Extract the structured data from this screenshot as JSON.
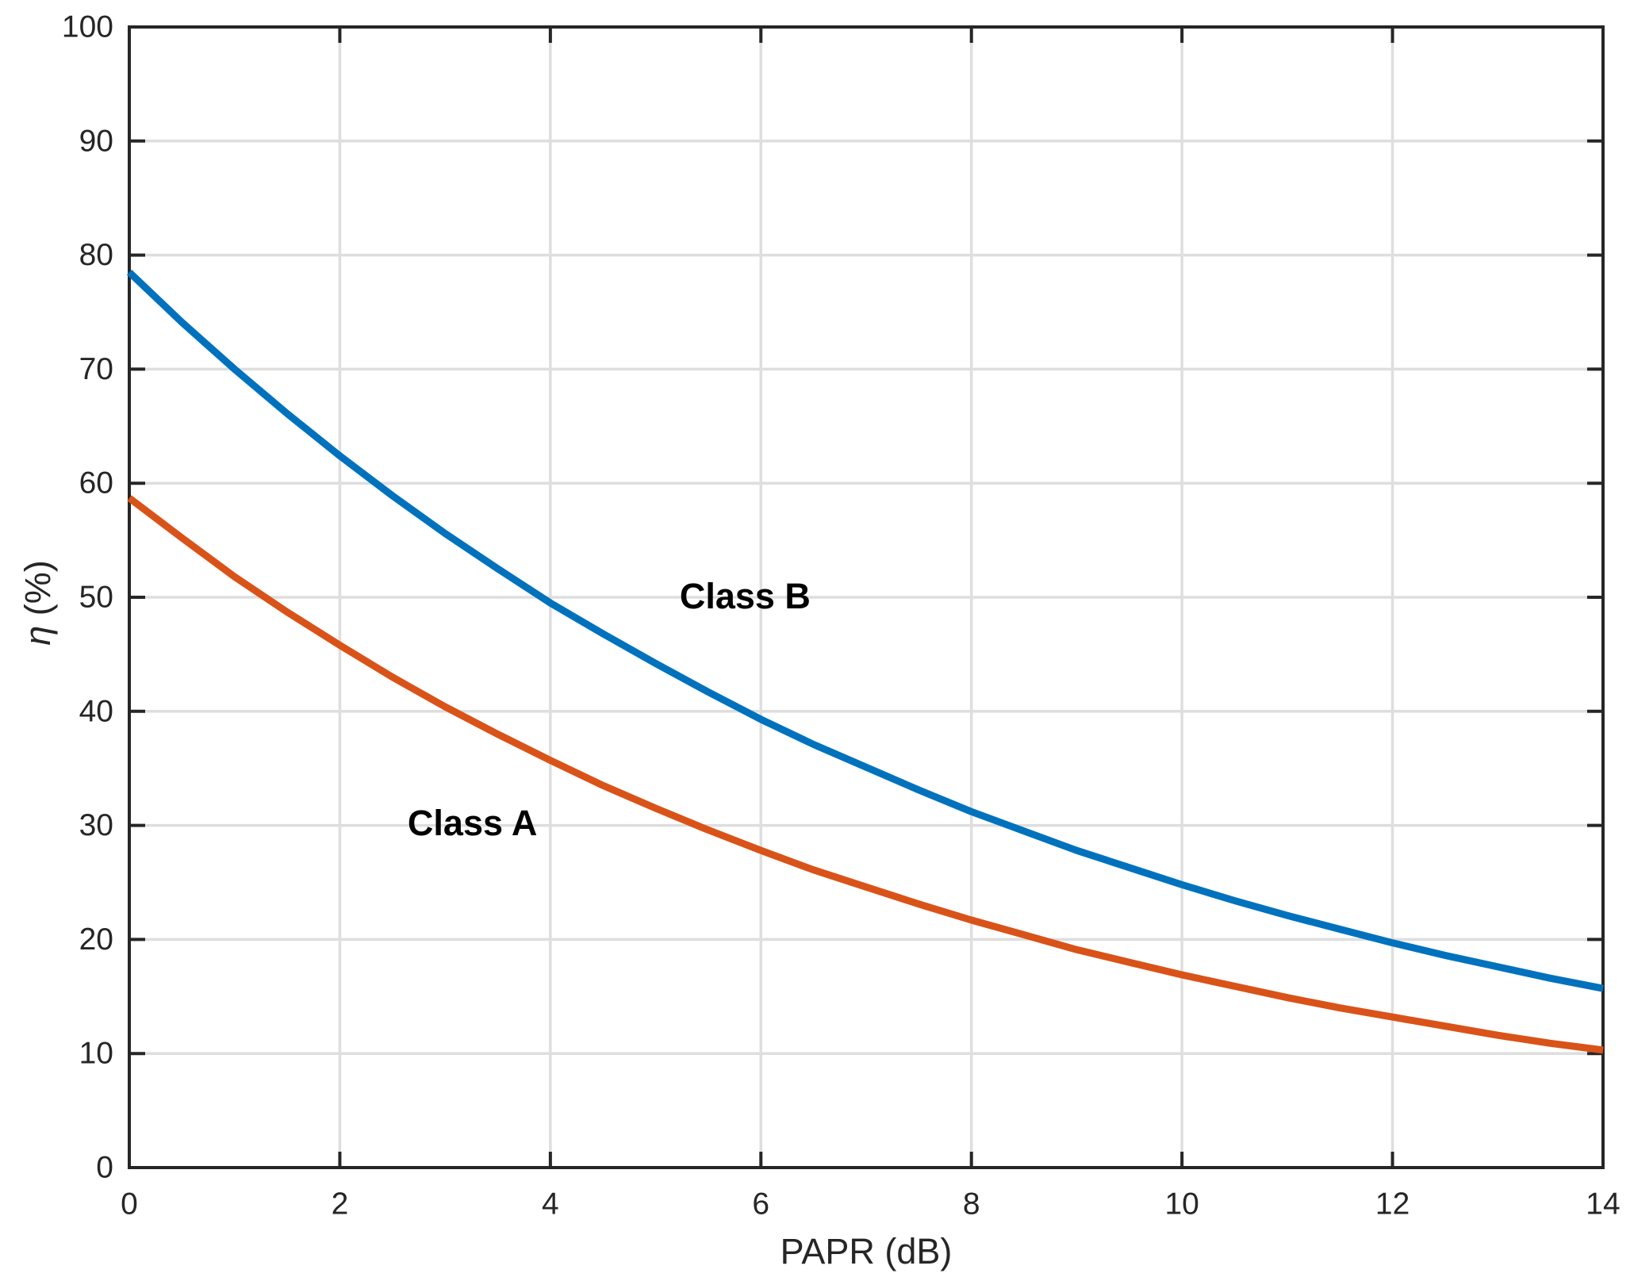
{
  "figure": {
    "background": "#ffffff",
    "axis_color": "#262626",
    "grid_color": "#dedede",
    "tick_label_color": "#262626",
    "annotation_color": "#000000"
  },
  "chart_data": {
    "type": "line",
    "title": "",
    "xlabel": "PAPR (dB)",
    "ylabel_symbol": "η",
    "ylabel_unit": "(%)",
    "xlim": [
      0,
      14
    ],
    "ylim": [
      0,
      100
    ],
    "xticks": [
      0,
      2,
      4,
      6,
      8,
      10,
      12,
      14
    ],
    "yticks": [
      0,
      10,
      20,
      30,
      40,
      50,
      60,
      70,
      80,
      90,
      100
    ],
    "grid": true,
    "legend_position": "none",
    "x": [
      0,
      0.5,
      1,
      1.5,
      2,
      2.5,
      3,
      3.5,
      4,
      4.5,
      5,
      5.5,
      6,
      6.5,
      7,
      7.5,
      8,
      8.5,
      9,
      9.5,
      10,
      10.5,
      11,
      11.5,
      12,
      12.5,
      13,
      13.5,
      14
    ],
    "series": [
      {
        "name": "Class B",
        "color": "#0072BD",
        "values": [
          78.5,
          74.1,
          70.0,
          66.1,
          62.4,
          58.9,
          55.6,
          52.5,
          49.5,
          46.8,
          44.2,
          41.7,
          39.3,
          37.1,
          35.1,
          33.1,
          31.2,
          29.5,
          27.8,
          26.3,
          24.8,
          23.4,
          22.1,
          20.9,
          19.7,
          18.6,
          17.6,
          16.6,
          15.7
        ]
      },
      {
        "name": "Class A",
        "color": "#D95319",
        "values": [
          58.7,
          55.2,
          51.8,
          48.7,
          45.8,
          43.0,
          40.4,
          38.0,
          35.7,
          33.5,
          31.5,
          29.6,
          27.8,
          26.1,
          24.6,
          23.1,
          21.7,
          20.4,
          19.1,
          18.0,
          16.9,
          15.9,
          14.9,
          14.0,
          13.2,
          12.4,
          11.6,
          10.9,
          10.3
        ]
      }
    ],
    "annotations": [
      {
        "text": "Class B",
        "x": 5.85,
        "y": 50.1
      },
      {
        "text": "Class A",
        "x": 3.26,
        "y": 30.2
      }
    ]
  }
}
